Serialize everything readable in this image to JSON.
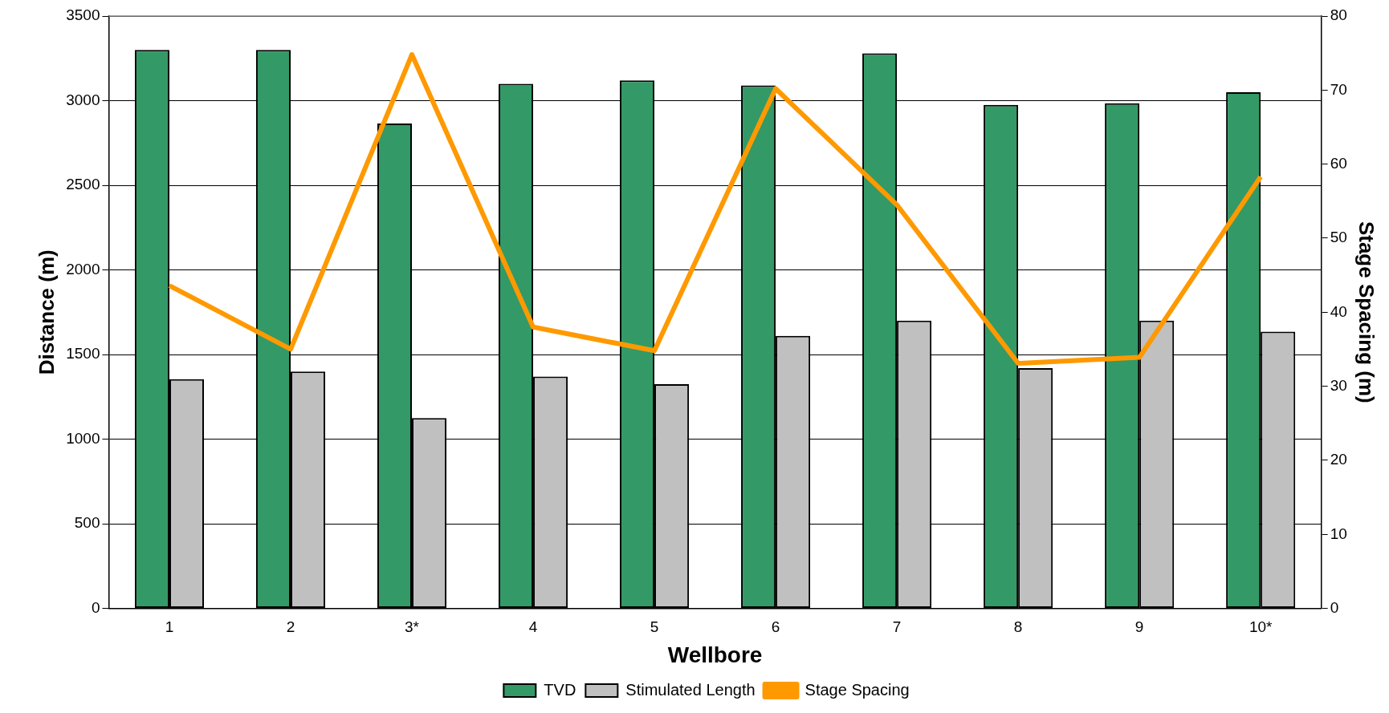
{
  "chart_data": {
    "type": "bar",
    "xlabel": "Wellbore",
    "ylabel": "Distance (m)",
    "y2label": "Stage Spacing (m)",
    "categories": [
      "1",
      "2",
      "3*",
      "4",
      "5",
      "6",
      "7",
      "8",
      "9",
      "10*"
    ],
    "series": [
      {
        "name": "TVD",
        "color": "#339966",
        "values": [
          3300,
          3300,
          2865,
          3100,
          3120,
          3090,
          3280,
          2975,
          2985,
          3050
        ]
      },
      {
        "name": "Stimulated Length",
        "color": "#c0c0c0",
        "values": [
          1355,
          1400,
          1125,
          1370,
          1325,
          1610,
          1700,
          1420,
          1700,
          1635
        ]
      },
      {
        "name": "Stage Spacing",
        "type": "line",
        "axis": "y2",
        "color": "#ff9900",
        "values": [
          43.6,
          35,
          74.8,
          38,
          34.8,
          70.2,
          54.5,
          33.1,
          33.9,
          58.3
        ]
      }
    ],
    "ylim": [
      0,
      3500
    ],
    "yticks": [
      0,
      500,
      1000,
      1500,
      2000,
      2500,
      3000,
      3500
    ],
    "y2lim": [
      0,
      80
    ],
    "y2ticks": [
      0,
      10,
      20,
      30,
      40,
      50,
      60,
      70,
      80
    ],
    "grid": "y",
    "legend": "bottom",
    "marker": "none"
  }
}
